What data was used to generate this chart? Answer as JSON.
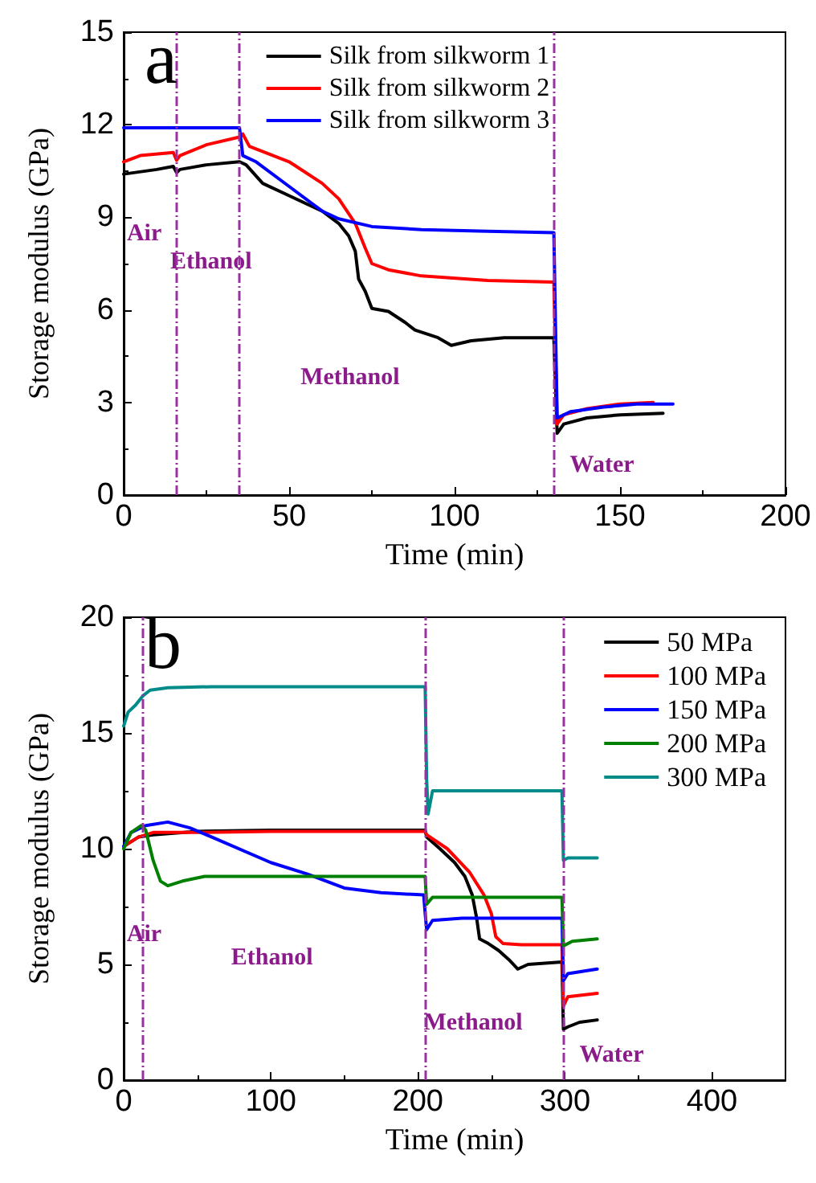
{
  "chart_data": [
    {
      "type": "line",
      "title": "a",
      "xlabel": "Time (min)",
      "ylabel": "Storage modulus (GPa)",
      "xlim": [
        0,
        200
      ],
      "xticks": [
        0,
        50,
        100,
        150,
        200
      ],
      "ylim": [
        0,
        15
      ],
      "yticks": [
        0,
        3,
        6,
        9,
        12,
        15
      ],
      "grid": false,
      "legend": "top",
      "marker": "none",
      "line_style": "solid",
      "series": [
        {
          "name": "Silk from silkworm 1",
          "color": "#000000",
          "x": [
            0,
            10,
            15,
            16,
            17,
            25,
            35,
            37,
            42,
            50,
            60,
            65,
            68,
            70,
            71,
            73,
            75,
            80,
            85,
            88,
            95,
            99,
            105,
            115,
            130,
            131,
            133,
            140,
            150,
            163
          ],
          "values": [
            10.4,
            10.55,
            10.65,
            10.45,
            10.55,
            10.7,
            10.8,
            10.7,
            10.1,
            9.7,
            9.2,
            8.8,
            8.4,
            7.9,
            7.0,
            6.6,
            6.05,
            5.95,
            5.6,
            5.35,
            5.1,
            4.85,
            5.0,
            5.1,
            5.1,
            2.0,
            2.3,
            2.5,
            2.6,
            2.65
          ]
        },
        {
          "name": "Silk from silkworm 2",
          "color": "#ff0000",
          "x": [
            0,
            5,
            15,
            16,
            17,
            25,
            35,
            36,
            38,
            50,
            60,
            65,
            70,
            73,
            75,
            80,
            90,
            110,
            130,
            131,
            133,
            140,
            150,
            160
          ],
          "values": [
            10.8,
            11.0,
            11.1,
            10.85,
            11.0,
            11.35,
            11.6,
            11.7,
            11.3,
            10.8,
            10.1,
            9.6,
            8.8,
            8.0,
            7.5,
            7.3,
            7.1,
            6.95,
            6.9,
            2.3,
            2.6,
            2.8,
            2.95,
            3.0
          ]
        },
        {
          "name": "Silk from silkworm 3",
          "color": "#0000ff",
          "x": [
            0,
            35,
            36,
            40,
            50,
            60,
            65,
            75,
            90,
            110,
            130,
            131,
            135,
            145,
            155,
            166
          ],
          "values": [
            11.9,
            11.9,
            11.0,
            10.8,
            10.0,
            9.2,
            8.95,
            8.7,
            8.6,
            8.55,
            8.5,
            2.5,
            2.7,
            2.85,
            2.95,
            2.95
          ]
        }
      ],
      "ref_lines": [
        {
          "axis": "x",
          "value": 16,
          "color": "#9932a0",
          "line_style": "dashed"
        },
        {
          "axis": "x",
          "value": 35,
          "color": "#9932a0",
          "line_style": "dashed"
        },
        {
          "axis": "x",
          "value": 130,
          "color": "#9932a0",
          "line_style": "dashed"
        }
      ],
      "annotations": [
        "Air",
        "Ethanol",
        "Methanol",
        "Water"
      ]
    },
    {
      "type": "line",
      "title": "b",
      "xlabel": "Time (min)",
      "ylabel": "Storage modulus (GPa)",
      "xlim": [
        0,
        450
      ],
      "xticks": [
        0,
        100,
        200,
        300,
        400
      ],
      "ylim": [
        0,
        20
      ],
      "yticks": [
        0,
        5,
        10,
        15,
        20
      ],
      "grid": false,
      "legend": "top right",
      "marker": "none",
      "line_style": "solid",
      "series": [
        {
          "name": "50 MPa",
          "color": "#000000",
          "x": [
            0,
            10,
            20,
            50,
            100,
            205,
            206,
            215,
            225,
            232,
            237,
            240,
            242,
            248,
            255,
            262,
            268,
            275,
            298,
            299,
            302,
            310,
            322
          ],
          "values": [
            10.1,
            10.5,
            10.6,
            10.75,
            10.8,
            10.8,
            10.5,
            10.0,
            9.4,
            8.8,
            8.0,
            7.0,
            6.1,
            5.9,
            5.6,
            5.2,
            4.8,
            5.0,
            5.1,
            2.2,
            2.3,
            2.5,
            2.6
          ]
        },
        {
          "name": "100 MPa",
          "color": "#ff0000",
          "x": [
            0,
            10,
            20,
            50,
            100,
            205,
            206,
            220,
            235,
            245,
            250,
            253,
            258,
            270,
            298,
            299,
            302,
            322
          ],
          "values": [
            10.1,
            10.5,
            10.7,
            10.7,
            10.75,
            10.75,
            10.6,
            10.0,
            9.0,
            8.0,
            7.2,
            6.2,
            5.9,
            5.85,
            5.85,
            3.2,
            3.6,
            3.75
          ]
        },
        {
          "name": "150 MPa",
          "color": "#0000ff",
          "x": [
            0,
            5,
            15,
            30,
            45,
            60,
            100,
            125,
            150,
            175,
            204,
            205,
            206,
            210,
            230,
            298,
            299,
            302,
            322
          ],
          "values": [
            10.1,
            10.7,
            11.0,
            11.15,
            10.9,
            10.5,
            9.4,
            8.9,
            8.3,
            8.1,
            8.0,
            7.2,
            6.5,
            6.9,
            7.0,
            7.0,
            4.3,
            4.6,
            4.8
          ]
        },
        {
          "name": "200 MPa",
          "color": "#008000",
          "x": [
            0,
            5,
            12,
            15,
            20,
            25,
            30,
            40,
            55,
            205,
            206,
            210,
            298,
            299,
            305,
            322
          ],
          "values": [
            10.0,
            10.7,
            11.0,
            10.8,
            9.5,
            8.6,
            8.4,
            8.6,
            8.8,
            8.8,
            7.6,
            7.9,
            7.9,
            5.8,
            6.0,
            6.1
          ]
        },
        {
          "name": "300 MPa",
          "color": "#008b8b",
          "x": [
            0,
            3,
            8,
            13,
            18,
            30,
            60,
            205,
            206,
            207,
            210,
            298,
            299,
            302,
            322
          ],
          "values": [
            15.3,
            15.9,
            16.2,
            16.6,
            16.85,
            16.95,
            17.0,
            17.0,
            13.0,
            11.5,
            12.5,
            12.5,
            9.5,
            9.6,
            9.6
          ]
        }
      ],
      "ref_lines": [
        {
          "axis": "x",
          "value": 13,
          "color": "#9932a0",
          "line_style": "dashed"
        },
        {
          "axis": "x",
          "value": 205,
          "color": "#9932a0",
          "line_style": "dashed"
        },
        {
          "axis": "x",
          "value": 299,
          "color": "#9932a0",
          "line_style": "dashed"
        }
      ],
      "annotations": [
        "Air",
        "Ethanol",
        "Methanol",
        "Water"
      ]
    }
  ]
}
